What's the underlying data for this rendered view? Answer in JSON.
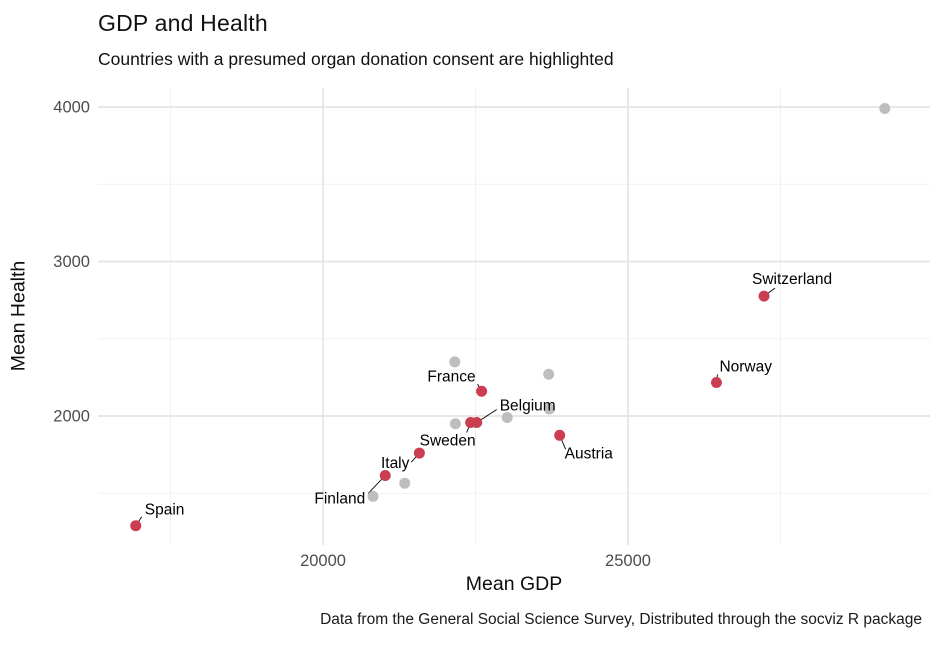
{
  "title": "GDP and Health",
  "subtitle": "Countries with a presumed organ donation consent are highlighted",
  "caption": "Data from the General Social Science Survey, Distributed through the socviz R package",
  "chart_data": {
    "type": "scatter",
    "title": "GDP and Health",
    "subtitle": "Countries with a presumed organ donation consent are highlighted",
    "xlabel": "Mean GDP",
    "ylabel": "Mean Health",
    "xlim": [
      16311,
      29951
    ],
    "ylim": [
      1165,
      4123
    ],
    "x_ticks": [
      "20000",
      "25000"
    ],
    "x_tick_values": [
      20000,
      25000
    ],
    "x_minor_tick_values": [
      17500,
      22500,
      27500
    ],
    "y_ticks": [
      "2000",
      "3000",
      "4000"
    ],
    "y_tick_values": [
      2000,
      3000,
      4000
    ],
    "y_minor_tick_values": [
      1500,
      2500,
      3500
    ],
    "grid": "major and minor gridlines, light gray on white, no axis lines or tick marks",
    "legend": "none",
    "series": [
      {
        "name": "presumed-consent-highlighted",
        "color": "#CB3E52",
        "points": [
          {
            "label": "Spain",
            "gdp": 16930,
            "health": 1290,
            "label_anchor": "start",
            "label_dx": 9,
            "label_dy": -11,
            "leader_dx": 6,
            "leader_dy": -9
          },
          {
            "label": "Finland",
            "gdp": 21020,
            "health": 1615,
            "label_anchor": "end",
            "label_dx": -20,
            "label_dy": 28,
            "leader_dx": -17,
            "leader_dy": 18
          },
          {
            "label": "Italy",
            "gdp": 21580,
            "health": 1760,
            "label_anchor": "end",
            "label_dx": -10,
            "label_dy": 15,
            "leader_dx": -8,
            "leader_dy": 9
          },
          {
            "label": "Sweden",
            "gdp": 22420,
            "health": 1958,
            "label_anchor": "end",
            "label_dx": 5,
            "label_dy": 23,
            "leader_dx": -4,
            "leader_dy": 10
          },
          {
            "label": "Belgium",
            "gdp": 22520,
            "health": 1958,
            "label_anchor": "start",
            "label_dx": 23,
            "label_dy": -12,
            "leader_dx": 20,
            "leader_dy": -13
          },
          {
            "label": "France",
            "gdp": 22600,
            "health": 2160,
            "label_anchor": "end",
            "label_dx": -6,
            "label_dy": -10,
            "leader_dx": -4,
            "leader_dy": -7
          },
          {
            "label": "Austria",
            "gdp": 23880,
            "health": 1875,
            "label_anchor": "start",
            "label_dx": 5,
            "label_dy": 23,
            "leader_dx": 6,
            "leader_dy": 14
          },
          {
            "label": "Norway",
            "gdp": 26450,
            "health": 2217,
            "label_anchor": "start",
            "label_dx": 3,
            "label_dy": -11,
            "leader_dx": 1,
            "leader_dy": -8
          },
          {
            "label": "Switzerland",
            "gdp": 27230,
            "health": 2776,
            "label_anchor": "start",
            "label_dx": -12,
            "label_dy": -12,
            "leader_dx": 11,
            "leader_dy": -8
          }
        ]
      },
      {
        "name": "other-countries",
        "color": "#BEBEBE",
        "points": [
          {
            "gdp": 22160,
            "health": 2350
          },
          {
            "gdp": 23700,
            "health": 2270
          },
          {
            "gdp": 22170,
            "health": 1950
          },
          {
            "gdp": 23020,
            "health": 1990
          },
          {
            "gdp": 23710,
            "health": 2045
          },
          {
            "gdp": 21340,
            "health": 1565
          },
          {
            "gdp": 20820,
            "health": 1480
          },
          {
            "gdp": 29210,
            "health": 3990
          }
        ]
      }
    ],
    "point_radius_px": 5.5,
    "colors": {
      "highlight": "#CB3E52",
      "muted": "#BEBEBE",
      "grid_major": "#E5E5E5",
      "grid_minor": "#F1F1F1",
      "tick_text": "#4D4D4D",
      "label_text": "#000000"
    }
  }
}
